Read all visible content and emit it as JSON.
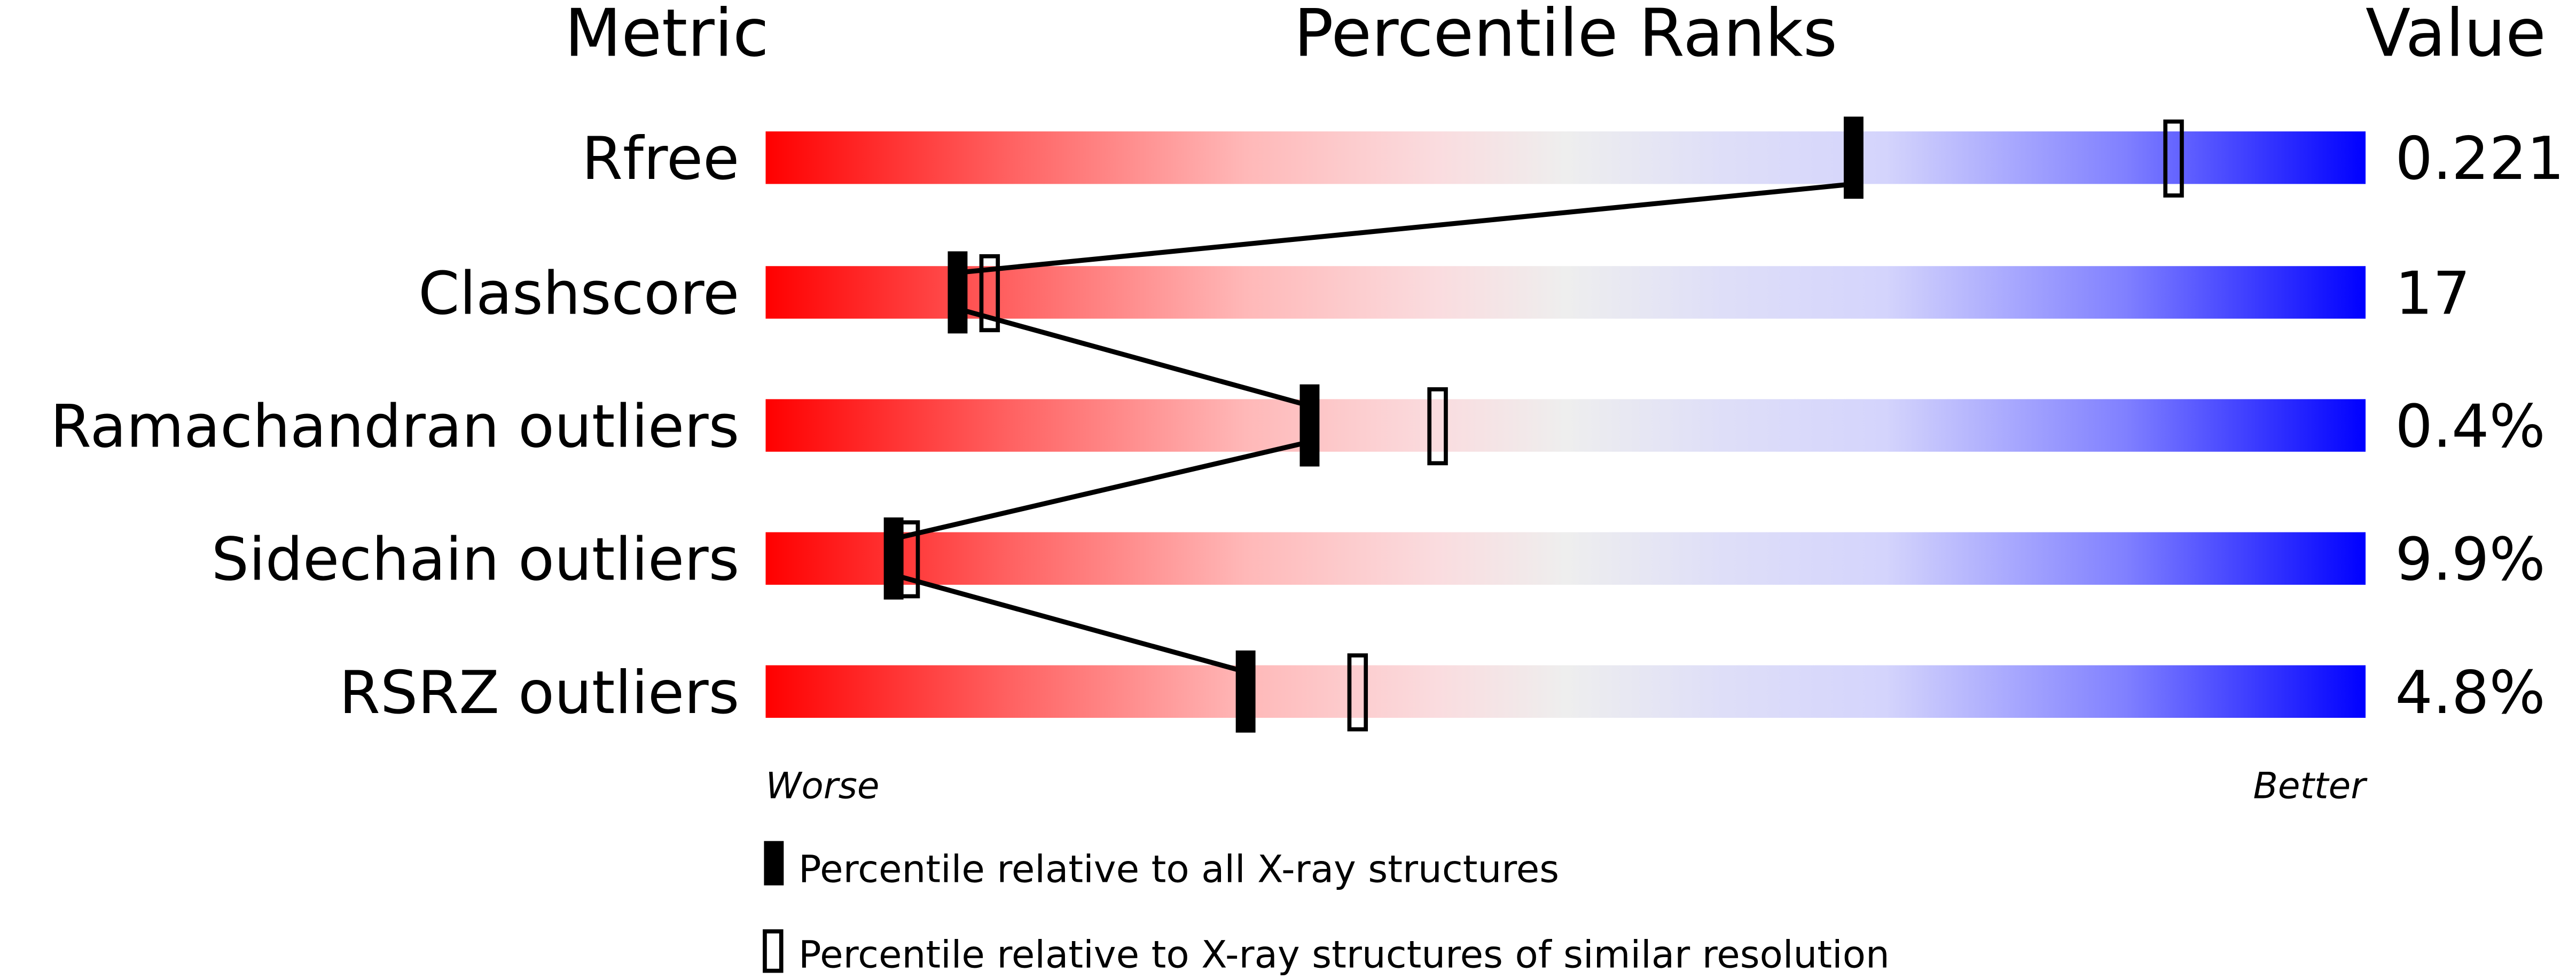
{
  "headers": {
    "metric": "Metric",
    "percentile": "Percentile Ranks",
    "value": "Value"
  },
  "axis": {
    "worse": "Worse",
    "better": "Better"
  },
  "legend": {
    "all": "Percentile relative to all X-ray structures",
    "similar": "Percentile relative to X-ray structures of similar resolution"
  },
  "colors": {
    "worse": "#ff0000",
    "better": "#0000ff",
    "marker": "#000000"
  },
  "chart_data": {
    "type": "bar",
    "title": "",
    "xlim": [
      0,
      100
    ],
    "categories": [
      "Rfree",
      "Clashscore",
      "Ramachandran outliers",
      "Sidechain outliers",
      "RSRZ outliers"
    ],
    "values_text": [
      "0.221",
      "17",
      "0.4%",
      "9.9%",
      "4.8%"
    ],
    "series": [
      {
        "name": "Percentile relative to all X-ray structures",
        "marker": "filled",
        "values": [
          68,
          12,
          34,
          8,
          30
        ]
      },
      {
        "name": "Percentile relative to X-ray structures of similar resolution",
        "marker": "open",
        "values": [
          88,
          14,
          42,
          9,
          37
        ]
      }
    ]
  }
}
